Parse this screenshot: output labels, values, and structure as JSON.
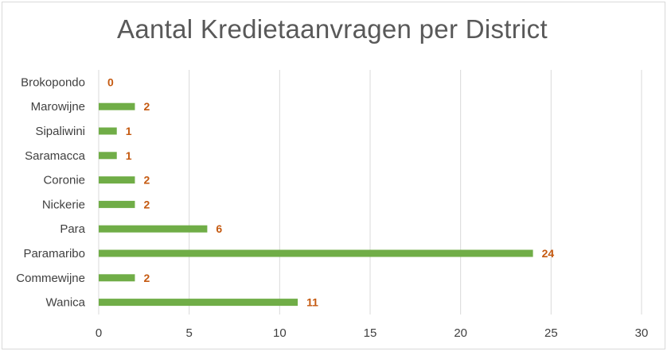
{
  "chart_data": {
    "type": "bar",
    "orientation": "horizontal",
    "title": "Aantal Kredietaanvragen per District",
    "categories": [
      "Wanica",
      "Commewijne",
      "Paramaribo",
      "Para",
      "Nickerie",
      "Coronie",
      "Saramacca",
      "Sipaliwini",
      "Marowijne",
      "Brokopondo"
    ],
    "values": [
      11,
      2,
      24,
      6,
      2,
      2,
      1,
      1,
      2,
      0
    ],
    "xlim": [
      0,
      30
    ],
    "xticks": [
      "0",
      "5",
      "10",
      "15",
      "20",
      "25",
      "30"
    ],
    "grid": true,
    "data_labels": true,
    "colors": {
      "bar": "#70ad47",
      "label": "#c55a11",
      "grid": "#d9d9d9"
    }
  }
}
